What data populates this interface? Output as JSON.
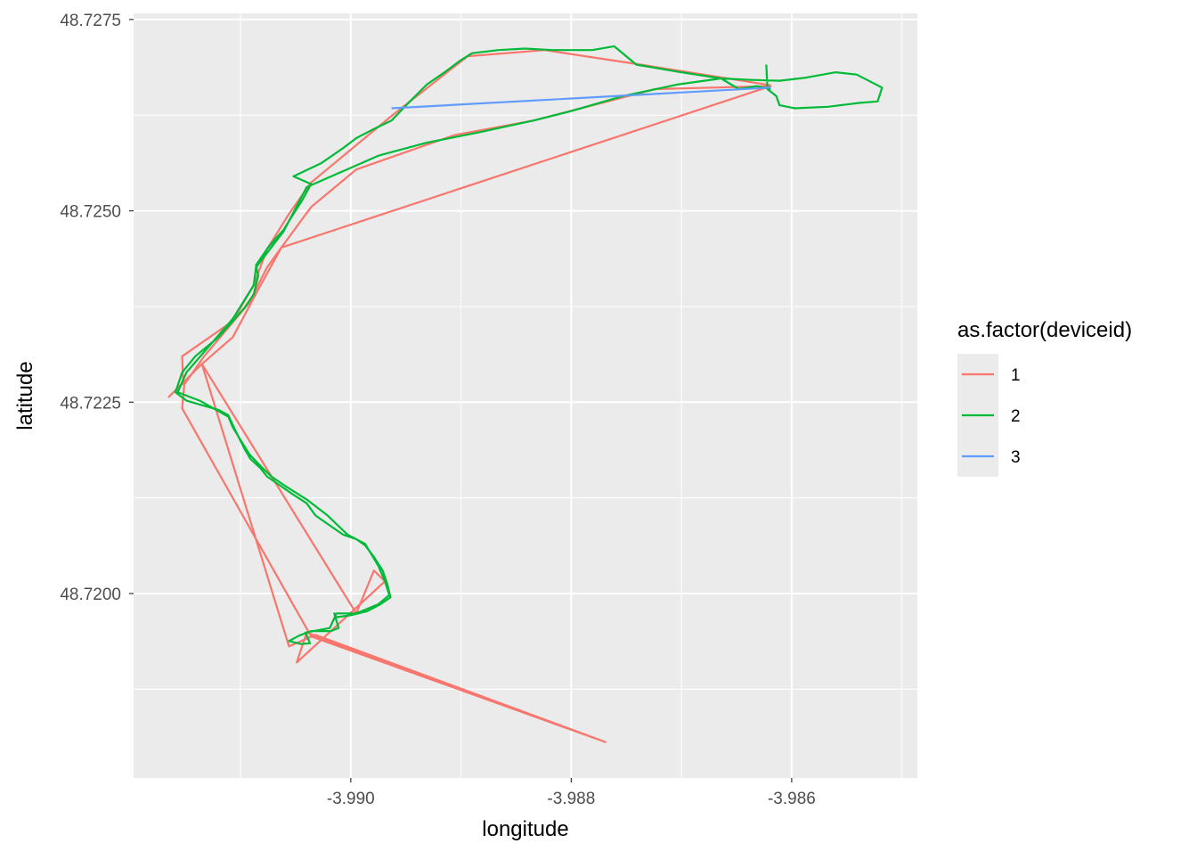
{
  "chart_data": {
    "type": "line",
    "title": "",
    "xlabel": "longitude",
    "ylabel": "latitude",
    "xlim": [
      -3.99197,
      -3.98486
    ],
    "ylim": [
      48.71759,
      48.72758
    ],
    "grid": true,
    "x_ticks": [
      -3.99,
      -3.988,
      -3.986
    ],
    "x_tick_labels": [
      "-3.990",
      "-3.988",
      "-3.986"
    ],
    "x_minor": [
      -3.991,
      -3.989,
      -3.987,
      -3.985
    ],
    "y_ticks": [
      48.72,
      48.7225,
      48.725,
      48.7275
    ],
    "y_tick_labels": [
      "48.7200",
      "48.7225",
      "48.7250",
      "48.7275"
    ],
    "y_minor": [
      48.71875,
      48.72125,
      48.72375,
      48.72625
    ],
    "legend": {
      "title": "as.factor(deviceid)",
      "placement": "right"
    },
    "series": [
      {
        "name": "1",
        "color": "#F8766D",
        "points": [
          [
            -3.98619,
            48.72664
          ],
          [
            -3.98737,
            48.72691
          ],
          [
            -3.98824,
            48.7271
          ],
          [
            -3.98894,
            48.72702
          ],
          [
            -3.98963,
            48.72624
          ],
          [
            -3.99036,
            48.72537
          ],
          [
            -3.99056,
            48.72496
          ],
          [
            -3.99076,
            48.7245
          ],
          [
            -3.99088,
            48.72403
          ],
          [
            -3.99107,
            48.72356
          ],
          [
            -3.99153,
            48.7231
          ],
          [
            -3.99152,
            48.72275
          ],
          [
            -3.99165,
            48.72257
          ],
          [
            -3.99135,
            48.723
          ],
          [
            -3.99107,
            48.72335
          ],
          [
            -3.99084,
            48.72397
          ],
          [
            -3.99063,
            48.72452
          ],
          [
            -3.98619,
            48.72663
          ],
          [
            -3.98724,
            48.72659
          ],
          [
            -3.98834,
            48.72618
          ],
          [
            -3.98906,
            48.72599
          ],
          [
            -3.98995,
            48.72554
          ],
          [
            -3.99036,
            48.72505
          ],
          [
            -3.99063,
            48.72452
          ],
          [
            -3.99076,
            48.72426
          ],
          [
            -3.99092,
            48.7238
          ],
          [
            -3.99133,
            48.7231
          ],
          [
            -3.99151,
            48.72273
          ],
          [
            -3.99153,
            48.72242
          ],
          [
            -3.99036,
            48.71944
          ],
          [
            -3.98769,
            48.71806
          ],
          [
            -3.9904,
            48.71949
          ],
          [
            -3.99049,
            48.7191
          ],
          [
            -3.98969,
            48.72016
          ],
          [
            -3.98979,
            48.7203
          ],
          [
            -3.98995,
            48.71974
          ],
          [
            -3.99135,
            48.723
          ],
          [
            -3.99056,
            48.71931
          ],
          [
            -3.99032,
            48.71946
          ],
          [
            -3.98769,
            48.71806
          ]
        ]
      },
      {
        "name": "2",
        "color": "#00BA38",
        "points": [
          [
            -3.98623,
            48.72691
          ],
          [
            -3.98622,
            48.72659
          ],
          [
            -3.98614,
            48.7265
          ],
          [
            -3.98611,
            48.72638
          ],
          [
            -3.98597,
            48.72634
          ],
          [
            -3.98567,
            48.72636
          ],
          [
            -3.98539,
            48.72641
          ],
          [
            -3.98522,
            48.72643
          ],
          [
            -3.98518,
            48.72661
          ],
          [
            -3.98541,
            48.72678
          ],
          [
            -3.9856,
            48.72681
          ],
          [
            -3.98587,
            48.72674
          ],
          [
            -3.98611,
            48.7267
          ],
          [
            -3.98636,
            48.72671
          ],
          [
            -3.98664,
            48.72673
          ],
          [
            -3.98704,
            48.72682
          ],
          [
            -3.98741,
            48.72691
          ],
          [
            -3.98761,
            48.72715
          ],
          [
            -3.98781,
            48.7271
          ],
          [
            -3.98817,
            48.7271
          ],
          [
            -3.98842,
            48.72712
          ],
          [
            -3.98866,
            48.7271
          ],
          [
            -3.9889,
            48.72706
          ],
          [
            -3.98901,
            48.72696
          ],
          [
            -3.98914,
            48.72682
          ],
          [
            -3.98931,
            48.72665
          ],
          [
            -3.98947,
            48.72642
          ],
          [
            -3.98963,
            48.72618
          ],
          [
            -3.98979,
            48.72607
          ],
          [
            -3.98995,
            48.72595
          ],
          [
            -3.99007,
            48.72582
          ],
          [
            -3.99027,
            48.72562
          ],
          [
            -3.99052,
            48.72545
          ],
          [
            -3.99036,
            48.72535
          ],
          [
            -3.99044,
            48.72514
          ],
          [
            -3.99052,
            48.72496
          ],
          [
            -3.99061,
            48.72475
          ],
          [
            -3.99068,
            48.72464
          ],
          [
            -3.99076,
            48.7245
          ],
          [
            -3.99086,
            48.72429
          ],
          [
            -3.99084,
            48.72415
          ],
          [
            -3.99088,
            48.72391
          ],
          [
            -3.99096,
            48.72374
          ],
          [
            -3.99107,
            48.72356
          ],
          [
            -3.9912,
            48.72335
          ],
          [
            -3.99141,
            48.7231
          ],
          [
            -3.99153,
            48.72289
          ],
          [
            -3.99159,
            48.72263
          ],
          [
            -3.99149,
            48.72252
          ],
          [
            -3.99137,
            48.72247
          ],
          [
            -3.9912,
            48.7224
          ],
          [
            -3.99111,
            48.72233
          ],
          [
            -3.99104,
            48.72211
          ],
          [
            -3.99096,
            48.72188
          ],
          [
            -3.99091,
            48.72176
          ],
          [
            -3.99082,
            48.72164
          ],
          [
            -3.99076,
            48.72153
          ],
          [
            -3.99064,
            48.72141
          ],
          [
            -3.99052,
            48.72129
          ],
          [
            -3.9904,
            48.72118
          ],
          [
            -3.99032,
            48.72102
          ],
          [
            -3.99019,
            48.72089
          ],
          [
            -3.99007,
            48.72077
          ],
          [
            -3.98995,
            48.72071
          ],
          [
            -3.98987,
            48.72063
          ],
          [
            -3.98979,
            48.72048
          ],
          [
            -3.98971,
            48.7203
          ],
          [
            -3.98967,
            48.72013
          ],
          [
            -3.98964,
            48.71995
          ],
          [
            -3.98973,
            48.71986
          ],
          [
            -3.98985,
            48.71977
          ],
          [
            -3.98999,
            48.71972
          ],
          [
            -3.99013,
            48.71969
          ],
          [
            -3.99015,
            48.71974
          ],
          [
            -3.99011,
            48.71955
          ],
          [
            -3.99018,
            48.71951
          ],
          [
            -3.99036,
            48.71951
          ],
          [
            -3.99047,
            48.71945
          ],
          [
            -3.99056,
            48.71938
          ],
          [
            -3.99045,
            48.71934
          ],
          [
            -3.99037,
            48.71935
          ],
          [
            -3.99041,
            48.71949
          ],
          [
            -3.99019,
            48.71955
          ],
          [
            -3.99013,
            48.71974
          ],
          [
            -3.98995,
            48.71974
          ],
          [
            -3.98975,
            48.71986
          ],
          [
            -3.98965,
            48.71998
          ],
          [
            -3.98969,
            48.72016
          ],
          [
            -3.98975,
            48.72036
          ],
          [
            -3.98987,
            48.72065
          ],
          [
            -3.99003,
            48.72077
          ],
          [
            -3.99021,
            48.72102
          ],
          [
            -3.9904,
            48.72123
          ],
          [
            -3.9906,
            48.72141
          ],
          [
            -3.99072,
            48.72153
          ],
          [
            -3.9908,
            48.72164
          ],
          [
            -3.99092,
            48.72182
          ],
          [
            -3.99107,
            48.72217
          ],
          [
            -3.99111,
            48.72231
          ],
          [
            -3.99137,
            48.72252
          ],
          [
            -3.99157,
            48.72263
          ],
          [
            -3.99149,
            48.72289
          ],
          [
            -3.99107,
            48.72359
          ],
          [
            -3.99088,
            48.72403
          ],
          [
            -3.99086,
            48.72426
          ],
          [
            -3.99061,
            48.72473
          ],
          [
            -3.9904,
            48.72531
          ],
          [
            -3.98975,
            48.72572
          ],
          [
            -3.98931,
            48.72589
          ],
          [
            -3.98882,
            48.72603
          ],
          [
            -3.98834,
            48.72618
          ],
          [
            -3.98801,
            48.7263
          ],
          [
            -3.98753,
            48.7265
          ],
          [
            -3.98704,
            48.72665
          ],
          [
            -3.98664,
            48.72673
          ],
          [
            -3.98648,
            48.72659
          ],
          [
            -3.98632,
            48.72663
          ],
          [
            -3.98619,
            48.72659
          ]
        ]
      },
      {
        "name": "3",
        "color": "#619CFF",
        "points": [
          [
            -3.98963,
            48.72634
          ],
          [
            -3.98619,
            48.72661
          ]
        ]
      }
    ]
  }
}
